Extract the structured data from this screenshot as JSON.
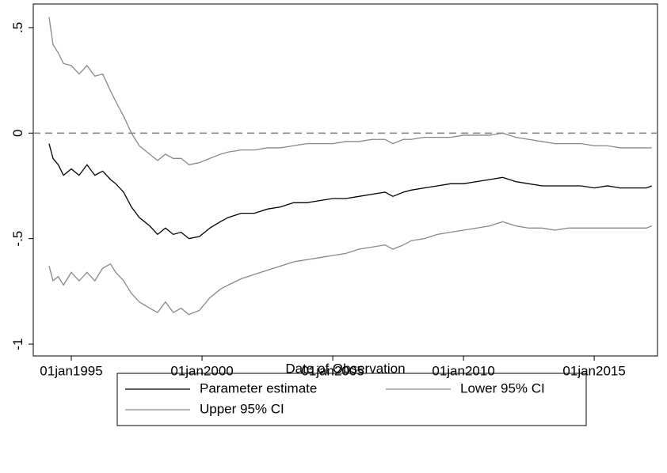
{
  "chart_data": {
    "type": "line",
    "x_label": "Date of Observation",
    "x": [
      1994.15,
      1994.3,
      1994.5,
      1994.7,
      1995.0,
      1995.3,
      1995.6,
      1995.9,
      1996.2,
      1996.5,
      1996.7,
      1997.0,
      1997.3,
      1997.6,
      1998.0,
      1998.3,
      1998.6,
      1998.9,
      1999.2,
      1999.5,
      1999.9,
      2000.3,
      2000.7,
      2001.0,
      2001.5,
      2002.0,
      2002.5,
      2003.0,
      2003.5,
      2004.0,
      2004.5,
      2005.0,
      2005.5,
      2006.0,
      2006.5,
      2007.0,
      2007.3,
      2007.7,
      2008.0,
      2008.5,
      2009.0,
      2009.5,
      2010.0,
      2010.5,
      2011.0,
      2011.5,
      2012.0,
      2012.5,
      2013.0,
      2013.5,
      2014.0,
      2014.5,
      2015.0,
      2015.5,
      2016.0,
      2016.5,
      2017.0,
      2017.2
    ],
    "series": [
      {
        "name": "Parameter estimate",
        "color": "#000000",
        "values": [
          -0.05,
          -0.12,
          -0.15,
          -0.2,
          -0.17,
          -0.2,
          -0.15,
          -0.2,
          -0.18,
          -0.22,
          -0.24,
          -0.28,
          -0.35,
          -0.4,
          -0.44,
          -0.48,
          -0.45,
          -0.48,
          -0.47,
          -0.5,
          -0.49,
          -0.45,
          -0.42,
          -0.4,
          -0.38,
          -0.38,
          -0.36,
          -0.35,
          -0.33,
          -0.33,
          -0.32,
          -0.31,
          -0.31,
          -0.3,
          -0.29,
          -0.28,
          -0.3,
          -0.28,
          -0.27,
          -0.26,
          -0.25,
          -0.24,
          -0.24,
          -0.23,
          -0.22,
          -0.21,
          -0.23,
          -0.24,
          -0.25,
          -0.25,
          -0.25,
          -0.25,
          -0.26,
          -0.25,
          -0.26,
          -0.26,
          -0.26,
          -0.25
        ]
      },
      {
        "name": "Lower 95% CI",
        "color": "#888888",
        "values": [
          -0.63,
          -0.7,
          -0.68,
          -0.72,
          -0.66,
          -0.7,
          -0.66,
          -0.7,
          -0.64,
          -0.62,
          -0.66,
          -0.7,
          -0.76,
          -0.8,
          -0.83,
          -0.85,
          -0.8,
          -0.85,
          -0.83,
          -0.86,
          -0.84,
          -0.78,
          -0.74,
          -0.72,
          -0.69,
          -0.67,
          -0.65,
          -0.63,
          -0.61,
          -0.6,
          -0.59,
          -0.58,
          -0.57,
          -0.55,
          -0.54,
          -0.53,
          -0.55,
          -0.53,
          -0.51,
          -0.5,
          -0.48,
          -0.47,
          -0.46,
          -0.45,
          -0.44,
          -0.42,
          -0.44,
          -0.45,
          -0.45,
          -0.46,
          -0.45,
          -0.45,
          -0.45,
          -0.45,
          -0.45,
          -0.45,
          -0.45,
          -0.44
        ]
      },
      {
        "name": "Upper 95% CI",
        "color": "#888888",
        "values": [
          0.55,
          0.42,
          0.38,
          0.33,
          0.32,
          0.28,
          0.32,
          0.27,
          0.28,
          0.2,
          0.15,
          0.08,
          0.0,
          -0.06,
          -0.1,
          -0.13,
          -0.1,
          -0.12,
          -0.12,
          -0.15,
          -0.14,
          -0.12,
          -0.1,
          -0.09,
          -0.08,
          -0.08,
          -0.07,
          -0.07,
          -0.06,
          -0.05,
          -0.05,
          -0.05,
          -0.04,
          -0.04,
          -0.03,
          -0.03,
          -0.05,
          -0.03,
          -0.03,
          -0.02,
          -0.02,
          -0.02,
          -0.01,
          -0.01,
          -0.01,
          0.0,
          -0.02,
          -0.03,
          -0.04,
          -0.05,
          -0.05,
          -0.05,
          -0.06,
          -0.06,
          -0.07,
          -0.07,
          -0.07,
          -0.07
        ]
      }
    ],
    "xlim": [
      1993.545,
      2017.42
    ],
    "xticks": [
      {
        "value": 1995,
        "label": "01jan1995"
      },
      {
        "value": 2000,
        "label": "01jan2000"
      },
      {
        "value": 2005,
        "label": "01jan2005"
      },
      {
        "value": 2010,
        "label": "01jan2010"
      },
      {
        "value": 2015,
        "label": "01jan2015"
      }
    ],
    "ylim": [
      -1.056,
      0.612
    ],
    "yticks": [
      {
        "value": -1,
        "label": "-1"
      },
      {
        "value": -0.5,
        "label": "-.5"
      },
      0,
      {
        "value": 0.5,
        "label": ".5"
      }
    ],
    "reference_line": {
      "y": 0,
      "color": "#888888",
      "dashed": true
    },
    "legend": "bottom"
  }
}
